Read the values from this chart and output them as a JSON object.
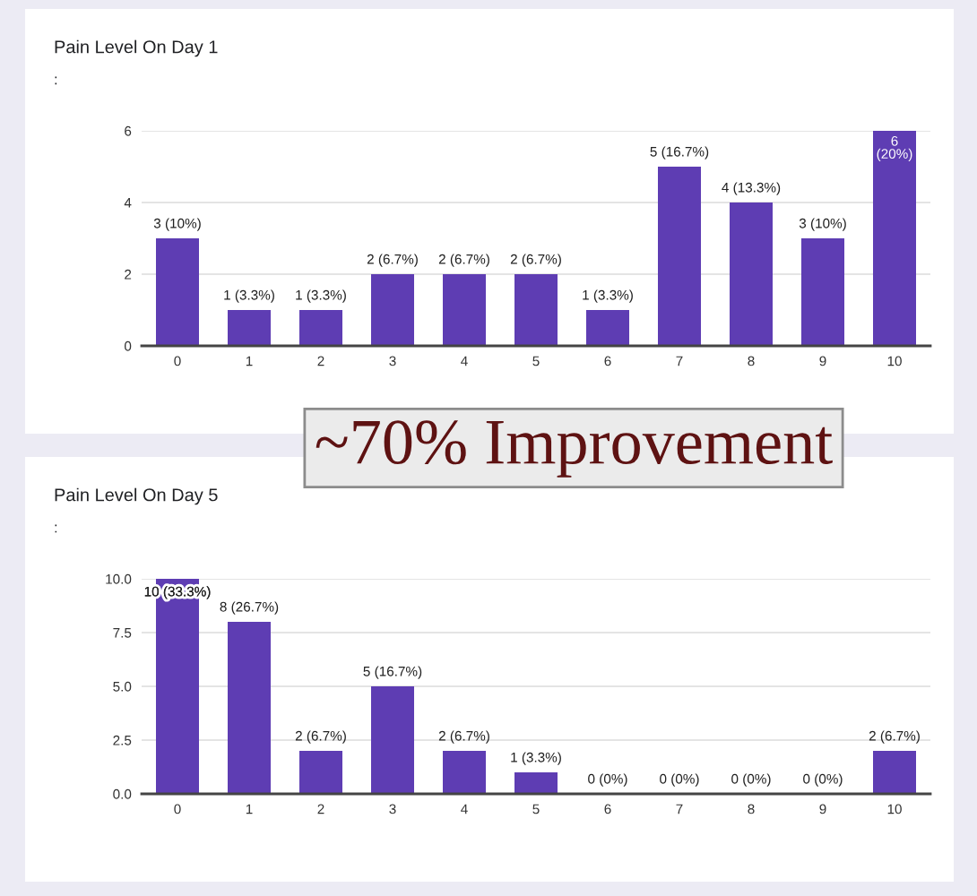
{
  "chart_data": [
    {
      "type": "bar",
      "title": "Pain Level On Day 1",
      "subtitle": ":",
      "categories": [
        "0",
        "1",
        "2",
        "3",
        "4",
        "5",
        "6",
        "7",
        "8",
        "9",
        "10"
      ],
      "values": [
        3,
        1,
        1,
        2,
        2,
        2,
        1,
        5,
        4,
        3,
        6
      ],
      "value_labels": [
        "3 (10%)",
        "1 (3.3%)",
        "1 (3.3%)",
        "2 (6.7%)",
        "2 (6.7%)",
        "2 (6.7%)",
        "1 (3.3%)",
        "5 (16.7%)",
        "4 (13.3%)",
        "3 (10%)",
        "6 (20%)"
      ],
      "color": "#5e3db3",
      "ylim": [
        0,
        6
      ],
      "yticks": [
        0,
        2,
        4,
        6
      ],
      "grid": "y",
      "annotations": [
        "~70% Improvement"
      ]
    },
    {
      "type": "bar",
      "title": "Pain Level On Day 5",
      "subtitle": ":",
      "categories": [
        "0",
        "1",
        "2",
        "3",
        "4",
        "5",
        "6",
        "7",
        "8",
        "9",
        "10"
      ],
      "values": [
        10,
        8,
        2,
        5,
        2,
        1,
        0,
        0,
        0,
        0,
        2
      ],
      "value_labels": [
        "10 (33.3%)",
        "8 (26.7%)",
        "2 (6.7%)",
        "5 (16.7%)",
        "2 (6.7%)",
        "1 (3.3%)",
        "0 (0%)",
        "0 (0%)",
        "0 (0%)",
        "0 (0%)",
        "2 (6.7%)"
      ],
      "color": "#5e3db3",
      "ylim": [
        0,
        10
      ],
      "yticks": [
        {
          "value": 0,
          "label": "0.0"
        },
        2.5,
        {
          "value": 5,
          "label": "5.0"
        },
        7.5,
        {
          "value": 10,
          "label": "10.0"
        }
      ],
      "grid": "y"
    }
  ]
}
